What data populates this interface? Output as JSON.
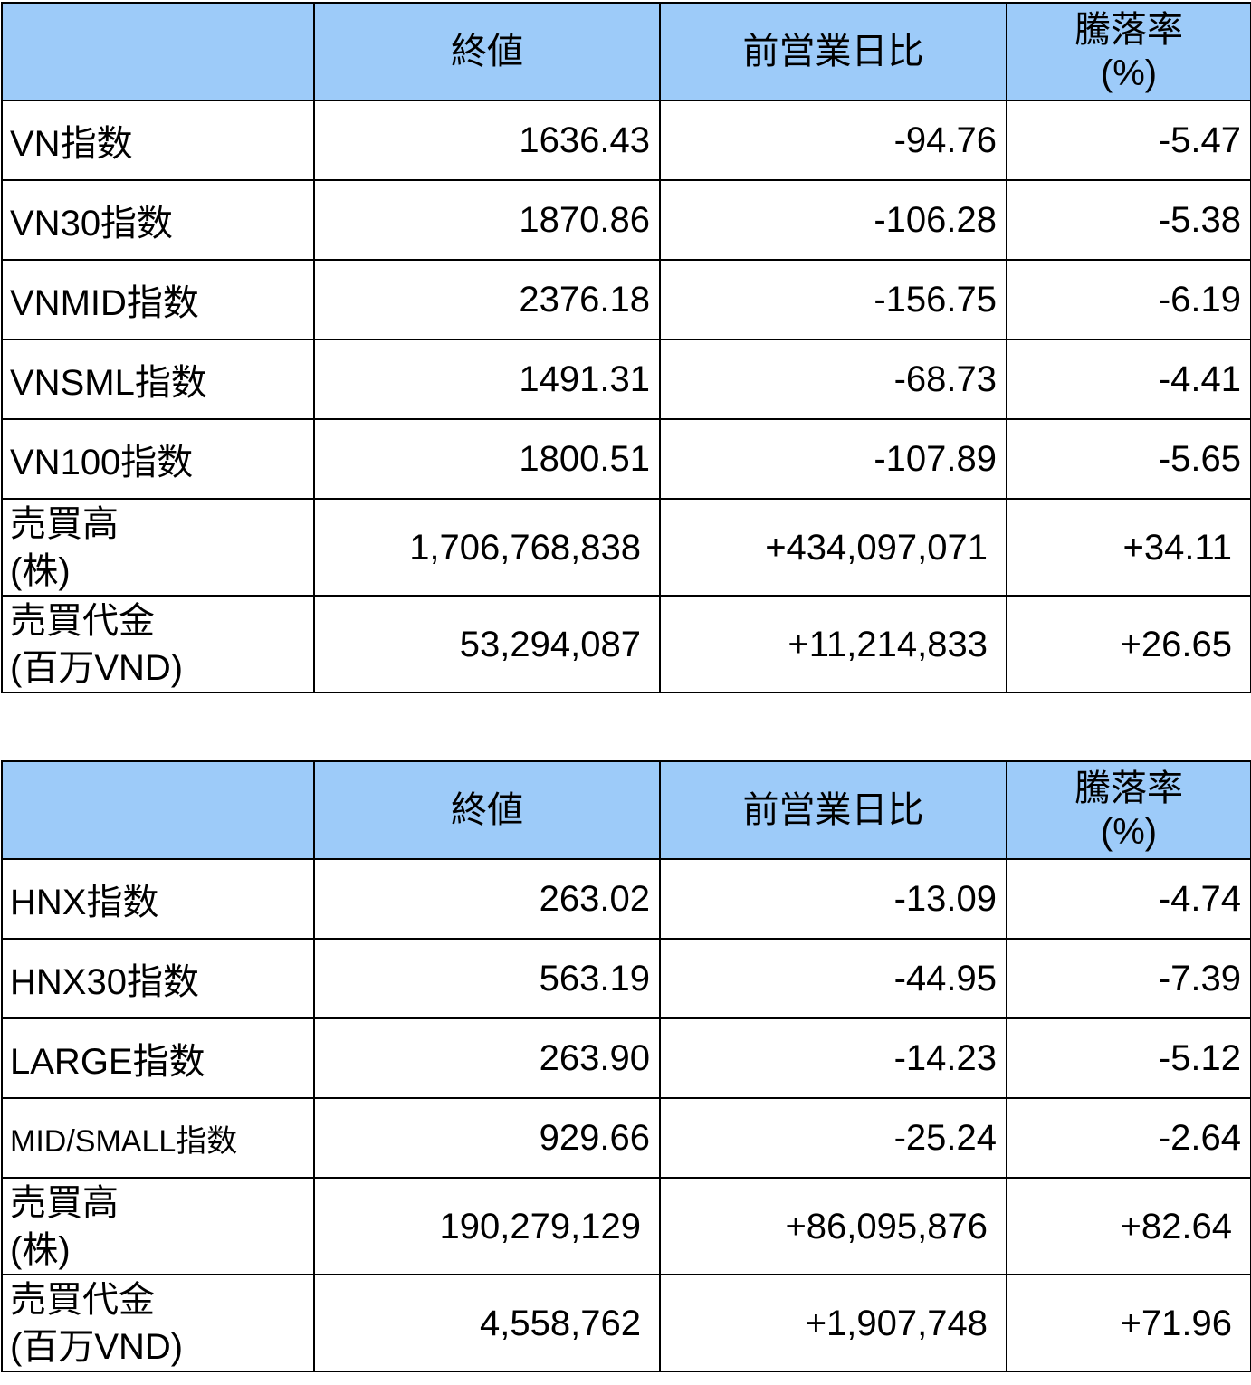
{
  "colors": {
    "header_bg": "#9dcbf9",
    "border": "#000000"
  },
  "tables": [
    {
      "headers": [
        "",
        "終値",
        "前営業日比",
        "騰落率\n(%)"
      ],
      "rows": [
        {
          "label": "VN指数",
          "values": [
            "1636.43",
            "-94.76",
            "-5.47"
          ]
        },
        {
          "label": "VN30指数",
          "values": [
            "1870.86",
            "-106.28",
            "-5.38"
          ]
        },
        {
          "label": "VNMID指数",
          "values": [
            "2376.18",
            "-156.75",
            "-6.19"
          ]
        },
        {
          "label": "VNSML指数",
          "values": [
            "1491.31",
            "-68.73",
            "-4.41"
          ]
        },
        {
          "label": "VN100指数",
          "values": [
            "1800.51",
            "-107.89",
            "-5.65"
          ]
        },
        {
          "label": "売買高\n(株)",
          "values": [
            "1,706,768,838",
            "+434,097,071",
            "+34.11"
          ]
        },
        {
          "label": "売買代金\n(百万VND)",
          "values": [
            "53,294,087",
            "+11,214,833",
            "+26.65"
          ]
        }
      ]
    },
    {
      "headers": [
        "",
        "終値",
        "前営業日比",
        "騰落率\n(%)"
      ],
      "rows": [
        {
          "label": "HNX指数",
          "values": [
            "263.02",
            "-13.09",
            "-4.74"
          ]
        },
        {
          "label": "HNX30指数",
          "values": [
            "563.19",
            "-44.95",
            "-7.39"
          ]
        },
        {
          "label": "LARGE指数",
          "values": [
            "263.90",
            "-14.23",
            "-5.12"
          ]
        },
        {
          "label": "MID/SMALL指数",
          "values": [
            "929.66",
            "-25.24",
            "-2.64"
          ]
        },
        {
          "label": "売買高\n(株)",
          "values": [
            "190,279,129",
            "+86,095,876",
            "+82.64"
          ]
        },
        {
          "label": "売買代金\n(百万VND)",
          "values": [
            "4,558,762",
            "+1,907,748",
            "+71.96"
          ]
        }
      ]
    }
  ]
}
